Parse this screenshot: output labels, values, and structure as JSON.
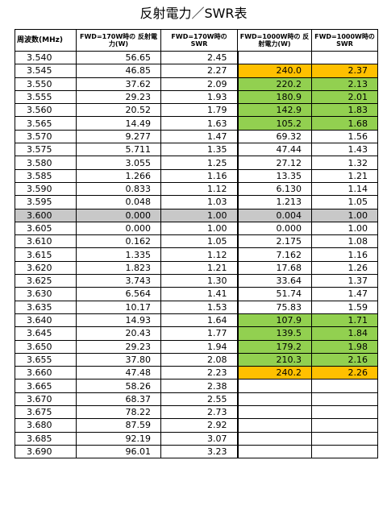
{
  "title": "反射電力／SWR表",
  "colors": {
    "green": "#92d050",
    "orange": "#ffc000",
    "gray": "#c8c8c8"
  },
  "headers": [
    "周波数(MHz)",
    "FWD=170W時の 反射電力(W)",
    "FWD=170W時の SWR",
    "FWD=1000W時の 反射電力(W)",
    "FWD=1000W時の SWR"
  ],
  "rows": [
    {
      "freq": "3.540",
      "r170": "56.65",
      "s170": "2.45",
      "r1000": "",
      "s1000": "",
      "hl": ""
    },
    {
      "freq": "3.545",
      "r170": "46.85",
      "s170": "2.27",
      "r1000": "240.0",
      "s1000": "2.37",
      "hl": "orange"
    },
    {
      "freq": "3.550",
      "r170": "37.62",
      "s170": "2.09",
      "r1000": "220.2",
      "s1000": "2.13",
      "hl": "green"
    },
    {
      "freq": "3.555",
      "r170": "29.23",
      "s170": "1.93",
      "r1000": "180.9",
      "s1000": "2.01",
      "hl": "green"
    },
    {
      "freq": "3.560",
      "r170": "20.52",
      "s170": "1.79",
      "r1000": "142.9",
      "s1000": "1.83",
      "hl": "green"
    },
    {
      "freq": "3.565",
      "r170": "14.49",
      "s170": "1.63",
      "r1000": "105.2",
      "s1000": "1.68",
      "hl": "green"
    },
    {
      "freq": "3.570",
      "r170": "9.277",
      "s170": "1.47",
      "r1000": "69.32",
      "s1000": "1.56",
      "hl": ""
    },
    {
      "freq": "3.575",
      "r170": "5.711",
      "s170": "1.35",
      "r1000": "47.44",
      "s1000": "1.43",
      "hl": ""
    },
    {
      "freq": "3.580",
      "r170": "3.055",
      "s170": "1.25",
      "r1000": "27.12",
      "s1000": "1.32",
      "hl": ""
    },
    {
      "freq": "3.585",
      "r170": "1.266",
      "s170": "1.16",
      "r1000": "13.35",
      "s1000": "1.21",
      "hl": ""
    },
    {
      "freq": "3.590",
      "r170": "0.833",
      "s170": "1.12",
      "r1000": "6.130",
      "s1000": "1.14",
      "hl": ""
    },
    {
      "freq": "3.595",
      "r170": "0.048",
      "s170": "1.03",
      "r1000": "1.213",
      "s1000": "1.05",
      "hl": ""
    },
    {
      "freq": "3.600",
      "r170": "0.000",
      "s170": "1.00",
      "r1000": "0.004",
      "s1000": "1.00",
      "hl": "gray"
    },
    {
      "freq": "3.605",
      "r170": "0.000",
      "s170": "1.00",
      "r1000": "0.000",
      "s1000": "1.00",
      "hl": ""
    },
    {
      "freq": "3.610",
      "r170": "0.162",
      "s170": "1.05",
      "r1000": "2.175",
      "s1000": "1.08",
      "hl": ""
    },
    {
      "freq": "3.615",
      "r170": "1.335",
      "s170": "1.12",
      "r1000": "7.162",
      "s1000": "1.16",
      "hl": ""
    },
    {
      "freq": "3.620",
      "r170": "1.823",
      "s170": "1.21",
      "r1000": "17.68",
      "s1000": "1.26",
      "hl": ""
    },
    {
      "freq": "3.625",
      "r170": "3.743",
      "s170": "1.30",
      "r1000": "33.64",
      "s1000": "1.37",
      "hl": ""
    },
    {
      "freq": "3.630",
      "r170": "6.564",
      "s170": "1.41",
      "r1000": "51.74",
      "s1000": "1.47",
      "hl": ""
    },
    {
      "freq": "3.635",
      "r170": "10.17",
      "s170": "1.53",
      "r1000": "75.83",
      "s1000": "1.59",
      "hl": ""
    },
    {
      "freq": "3.640",
      "r170": "14.93",
      "s170": "1.64",
      "r1000": "107.9",
      "s1000": "1.71",
      "hl": "green"
    },
    {
      "freq": "3.645",
      "r170": "20.43",
      "s170": "1.77",
      "r1000": "139.5",
      "s1000": "1.84",
      "hl": "green"
    },
    {
      "freq": "3.650",
      "r170": "29.23",
      "s170": "1.94",
      "r1000": "179.2",
      "s1000": "1.98",
      "hl": "green"
    },
    {
      "freq": "3.655",
      "r170": "37.80",
      "s170": "2.08",
      "r1000": "210.3",
      "s1000": "2.16",
      "hl": "green"
    },
    {
      "freq": "3.660",
      "r170": "47.48",
      "s170": "2.23",
      "r1000": "240.2",
      "s1000": "2.26",
      "hl": "orange"
    },
    {
      "freq": "3.665",
      "r170": "58.26",
      "s170": "2.38",
      "r1000": "",
      "s1000": "",
      "hl": ""
    },
    {
      "freq": "3.670",
      "r170": "68.37",
      "s170": "2.55",
      "r1000": "",
      "s1000": "",
      "hl": ""
    },
    {
      "freq": "3.675",
      "r170": "78.22",
      "s170": "2.73",
      "r1000": "",
      "s1000": "",
      "hl": ""
    },
    {
      "freq": "3.680",
      "r170": "87.59",
      "s170": "2.92",
      "r1000": "",
      "s1000": "",
      "hl": ""
    },
    {
      "freq": "3.685",
      "r170": "92.19",
      "s170": "3.07",
      "r1000": "",
      "s1000": "",
      "hl": ""
    },
    {
      "freq": "3.690",
      "r170": "96.01",
      "s170": "3.23",
      "r1000": "",
      "s1000": "",
      "hl": ""
    }
  ]
}
